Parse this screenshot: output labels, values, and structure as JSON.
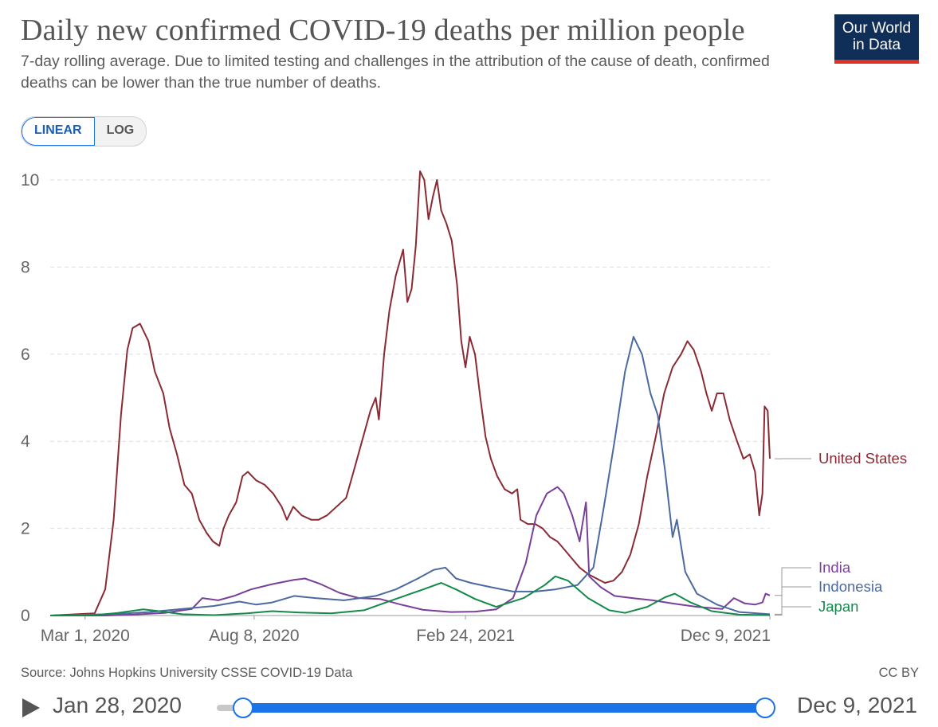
{
  "header": {
    "title": "Daily new confirmed COVID-19 deaths per million people",
    "subtitle": "7-day rolling average. Due to limited testing and challenges in the attribution of the cause of death, confirmed deaths can be lower than the true number of deaths.",
    "logo_line1": "Our World",
    "logo_line2": "in Data"
  },
  "scale_toggle": {
    "linear_label": "LINEAR",
    "log_label": "LOG",
    "selected": "LINEAR"
  },
  "footer": {
    "source": "Source: Johns Hopkins University CSSE COVID-19 Data",
    "license": "CC BY"
  },
  "timeline": {
    "start_label": "Jan 28, 2020",
    "end_label": "Dec 9, 2021"
  },
  "colors": {
    "united_states": "#8a2a35",
    "india": "#7a3f98",
    "indonesia": "#4a6aa0",
    "japan": "#138a4a",
    "grid": "#dddddd",
    "accent": "#1a73e8"
  },
  "chart_data": {
    "type": "line",
    "title": "Daily new confirmed COVID-19 deaths per million people",
    "ylim": [
      0,
      10
    ],
    "yticks": [
      0,
      2,
      4,
      6,
      8,
      10
    ],
    "xrange": [
      "2020-01-28",
      "2021-12-09"
    ],
    "xticks": [
      {
        "date": "2020-03-01",
        "label": "Mar 1, 2020"
      },
      {
        "date": "2020-08-08",
        "label": "Aug 8, 2020"
      },
      {
        "date": "2021-02-24",
        "label": "Feb 24, 2021"
      },
      {
        "date": "2021-12-09",
        "label": "Dec 9, 2021"
      }
    ],
    "grid": "horizontal dashed",
    "legend": "right, line end labels",
    "series": [
      {
        "name": "United States",
        "color": "#8a2a35",
        "points": [
          [
            "2020-01-28",
            0
          ],
          [
            "2020-03-10",
            0.05
          ],
          [
            "2020-03-20",
            0.6
          ],
          [
            "2020-03-28",
            2.2
          ],
          [
            "2020-04-04",
            4.6
          ],
          [
            "2020-04-10",
            6.1
          ],
          [
            "2020-04-15",
            6.6
          ],
          [
            "2020-04-22",
            6.7
          ],
          [
            "2020-04-30",
            6.3
          ],
          [
            "2020-05-06",
            5.6
          ],
          [
            "2020-05-14",
            5.1
          ],
          [
            "2020-05-20",
            4.3
          ],
          [
            "2020-05-27",
            3.7
          ],
          [
            "2020-06-03",
            3.0
          ],
          [
            "2020-06-10",
            2.8
          ],
          [
            "2020-06-17",
            2.2
          ],
          [
            "2020-06-24",
            1.9
          ],
          [
            "2020-06-30",
            1.7
          ],
          [
            "2020-07-06",
            1.6
          ],
          [
            "2020-07-10",
            2.0
          ],
          [
            "2020-07-15",
            2.3
          ],
          [
            "2020-07-22",
            2.6
          ],
          [
            "2020-07-28",
            3.2
          ],
          [
            "2020-08-02",
            3.3
          ],
          [
            "2020-08-10",
            3.1
          ],
          [
            "2020-08-18",
            3.0
          ],
          [
            "2020-08-26",
            2.8
          ],
          [
            "2020-09-03",
            2.5
          ],
          [
            "2020-09-08",
            2.2
          ],
          [
            "2020-09-14",
            2.5
          ],
          [
            "2020-09-22",
            2.3
          ],
          [
            "2020-10-01",
            2.2
          ],
          [
            "2020-10-08",
            2.2
          ],
          [
            "2020-10-16",
            2.3
          ],
          [
            "2020-10-25",
            2.5
          ],
          [
            "2020-11-03",
            2.7
          ],
          [
            "2020-11-10",
            3.3
          ],
          [
            "2020-11-18",
            4.0
          ],
          [
            "2020-11-26",
            4.7
          ],
          [
            "2020-12-01",
            5.0
          ],
          [
            "2020-12-04",
            4.5
          ],
          [
            "2020-12-09",
            6.0
          ],
          [
            "2020-12-14",
            7.0
          ],
          [
            "2020-12-20",
            7.8
          ],
          [
            "2020-12-27",
            8.4
          ],
          [
            "2020-12-31",
            7.2
          ],
          [
            "2021-01-04",
            7.5
          ],
          [
            "2021-01-08",
            8.5
          ],
          [
            "2021-01-12",
            10.2
          ],
          [
            "2021-01-16",
            10.0
          ],
          [
            "2021-01-20",
            9.1
          ],
          [
            "2021-01-24",
            9.6
          ],
          [
            "2021-01-28",
            10.0
          ],
          [
            "2021-02-01",
            9.3
          ],
          [
            "2021-02-06",
            9.0
          ],
          [
            "2021-02-11",
            8.6
          ],
          [
            "2021-02-16",
            7.6
          ],
          [
            "2021-02-20",
            6.3
          ],
          [
            "2021-02-24",
            5.7
          ],
          [
            "2021-02-28",
            6.4
          ],
          [
            "2021-03-05",
            6.0
          ],
          [
            "2021-03-10",
            5.0
          ],
          [
            "2021-03-15",
            4.1
          ],
          [
            "2021-03-20",
            3.6
          ],
          [
            "2021-03-26",
            3.2
          ],
          [
            "2021-04-02",
            2.9
          ],
          [
            "2021-04-09",
            2.8
          ],
          [
            "2021-04-14",
            2.9
          ],
          [
            "2021-04-17",
            2.2
          ],
          [
            "2021-04-24",
            2.1
          ],
          [
            "2021-05-01",
            2.1
          ],
          [
            "2021-05-08",
            2.0
          ],
          [
            "2021-05-15",
            1.8
          ],
          [
            "2021-05-22",
            1.7
          ],
          [
            "2021-05-29",
            1.5
          ],
          [
            "2021-06-05",
            1.3
          ],
          [
            "2021-06-12",
            1.1
          ],
          [
            "2021-06-20",
            0.95
          ],
          [
            "2021-06-28",
            0.85
          ],
          [
            "2021-07-06",
            0.75
          ],
          [
            "2021-07-14",
            0.8
          ],
          [
            "2021-07-22",
            1.0
          ],
          [
            "2021-07-30",
            1.4
          ],
          [
            "2021-08-07",
            2.1
          ],
          [
            "2021-08-15",
            3.2
          ],
          [
            "2021-08-23",
            4.1
          ],
          [
            "2021-08-31",
            5.1
          ],
          [
            "2021-09-08",
            5.7
          ],
          [
            "2021-09-16",
            6.0
          ],
          [
            "2021-09-22",
            6.3
          ],
          [
            "2021-09-28",
            6.1
          ],
          [
            "2021-10-05",
            5.6
          ],
          [
            "2021-10-10",
            5.1
          ],
          [
            "2021-10-15",
            4.7
          ],
          [
            "2021-10-20",
            5.1
          ],
          [
            "2021-10-26",
            5.1
          ],
          [
            "2021-11-01",
            4.5
          ],
          [
            "2021-11-08",
            4.0
          ],
          [
            "2021-11-14",
            3.6
          ],
          [
            "2021-11-20",
            3.7
          ],
          [
            "2021-11-25",
            3.3
          ],
          [
            "2021-11-29",
            2.3
          ],
          [
            "2021-12-02",
            2.8
          ],
          [
            "2021-12-04",
            4.8
          ],
          [
            "2021-12-07",
            4.7
          ],
          [
            "2021-12-09",
            3.6
          ]
        ]
      },
      {
        "name": "India",
        "color": "#7a3f98",
        "points": [
          [
            "2020-01-28",
            0
          ],
          [
            "2020-03-20",
            0.0
          ],
          [
            "2020-04-15",
            0.02
          ],
          [
            "2020-05-15",
            0.06
          ],
          [
            "2020-06-10",
            0.15
          ],
          [
            "2020-06-20",
            0.4
          ],
          [
            "2020-07-05",
            0.35
          ],
          [
            "2020-07-20",
            0.45
          ],
          [
            "2020-08-05",
            0.6
          ],
          [
            "2020-08-25",
            0.72
          ],
          [
            "2020-09-15",
            0.82
          ],
          [
            "2020-09-25",
            0.85
          ],
          [
            "2020-10-10",
            0.72
          ],
          [
            "2020-10-28",
            0.52
          ],
          [
            "2020-11-15",
            0.4
          ],
          [
            "2020-12-05",
            0.38
          ],
          [
            "2020-12-25",
            0.25
          ],
          [
            "2021-01-15",
            0.13
          ],
          [
            "2021-02-10",
            0.08
          ],
          [
            "2021-03-05",
            0.09
          ],
          [
            "2021-03-25",
            0.14
          ],
          [
            "2021-04-10",
            0.4
          ],
          [
            "2021-04-22",
            1.2
          ],
          [
            "2021-05-02",
            2.3
          ],
          [
            "2021-05-12",
            2.8
          ],
          [
            "2021-05-22",
            2.95
          ],
          [
            "2021-05-28",
            2.8
          ],
          [
            "2021-06-05",
            2.3
          ],
          [
            "2021-06-12",
            1.7
          ],
          [
            "2021-06-18",
            2.6
          ],
          [
            "2021-06-21",
            0.9
          ],
          [
            "2021-07-02",
            0.65
          ],
          [
            "2021-07-15",
            0.45
          ],
          [
            "2021-08-01",
            0.4
          ],
          [
            "2021-08-20",
            0.35
          ],
          [
            "2021-09-10",
            0.27
          ],
          [
            "2021-10-01",
            0.2
          ],
          [
            "2021-10-25",
            0.15
          ],
          [
            "2021-11-05",
            0.4
          ],
          [
            "2021-11-15",
            0.28
          ],
          [
            "2021-11-25",
            0.25
          ],
          [
            "2021-12-02",
            0.3
          ],
          [
            "2021-12-05",
            0.5
          ],
          [
            "2021-12-09",
            0.46
          ]
        ]
      },
      {
        "name": "Indonesia",
        "color": "#4a6aa0",
        "points": [
          [
            "2020-01-28",
            0
          ],
          [
            "2020-03-20",
            0.03
          ],
          [
            "2020-04-10",
            0.05
          ],
          [
            "2020-05-01",
            0.08
          ],
          [
            "2020-06-01",
            0.15
          ],
          [
            "2020-07-01",
            0.22
          ],
          [
            "2020-07-25",
            0.32
          ],
          [
            "2020-08-10",
            0.25
          ],
          [
            "2020-08-25",
            0.3
          ],
          [
            "2020-09-15",
            0.45
          ],
          [
            "2020-10-05",
            0.4
          ],
          [
            "2020-11-01",
            0.35
          ],
          [
            "2020-12-01",
            0.45
          ],
          [
            "2020-12-20",
            0.6
          ],
          [
            "2021-01-10",
            0.85
          ],
          [
            "2021-01-25",
            1.05
          ],
          [
            "2021-02-05",
            1.1
          ],
          [
            "2021-02-15",
            0.85
          ],
          [
            "2021-03-01",
            0.75
          ],
          [
            "2021-03-20",
            0.65
          ],
          [
            "2021-04-10",
            0.55
          ],
          [
            "2021-05-01",
            0.55
          ],
          [
            "2021-05-20",
            0.6
          ],
          [
            "2021-06-10",
            0.7
          ],
          [
            "2021-06-25",
            1.1
          ],
          [
            "2021-07-05",
            2.5
          ],
          [
            "2021-07-15",
            4.0
          ],
          [
            "2021-07-25",
            5.6
          ],
          [
            "2021-08-02",
            6.4
          ],
          [
            "2021-08-10",
            6.0
          ],
          [
            "2021-08-18",
            5.1
          ],
          [
            "2021-08-25",
            4.6
          ],
          [
            "2021-09-01",
            3.3
          ],
          [
            "2021-09-08",
            1.8
          ],
          [
            "2021-09-12",
            2.2
          ],
          [
            "2021-09-20",
            1.0
          ],
          [
            "2021-10-01",
            0.5
          ],
          [
            "2021-10-20",
            0.25
          ],
          [
            "2021-11-10",
            0.08
          ],
          [
            "2021-12-09",
            0.03
          ]
        ]
      },
      {
        "name": "Japan",
        "color": "#138a4a",
        "points": [
          [
            "2020-01-28",
            0
          ],
          [
            "2020-03-10",
            0.01
          ],
          [
            "2020-04-01",
            0.06
          ],
          [
            "2020-04-25",
            0.14
          ],
          [
            "2020-05-10",
            0.1
          ],
          [
            "2020-06-01",
            0.03
          ],
          [
            "2020-07-01",
            0.01
          ],
          [
            "2020-08-01",
            0.05
          ],
          [
            "2020-08-25",
            0.1
          ],
          [
            "2020-09-20",
            0.07
          ],
          [
            "2020-10-20",
            0.05
          ],
          [
            "2020-11-20",
            0.12
          ],
          [
            "2020-12-20",
            0.38
          ],
          [
            "2021-01-15",
            0.6
          ],
          [
            "2021-02-01",
            0.75
          ],
          [
            "2021-02-15",
            0.6
          ],
          [
            "2021-03-05",
            0.38
          ],
          [
            "2021-03-25",
            0.2
          ],
          [
            "2021-04-20",
            0.4
          ],
          [
            "2021-05-10",
            0.7
          ],
          [
            "2021-05-20",
            0.9
          ],
          [
            "2021-06-01",
            0.8
          ],
          [
            "2021-06-20",
            0.4
          ],
          [
            "2021-07-10",
            0.12
          ],
          [
            "2021-07-25",
            0.06
          ],
          [
            "2021-08-15",
            0.2
          ],
          [
            "2021-09-01",
            0.42
          ],
          [
            "2021-09-10",
            0.5
          ],
          [
            "2021-09-25",
            0.3
          ],
          [
            "2021-10-15",
            0.1
          ],
          [
            "2021-11-10",
            0.02
          ],
          [
            "2021-12-09",
            0.01
          ]
        ]
      }
    ]
  }
}
